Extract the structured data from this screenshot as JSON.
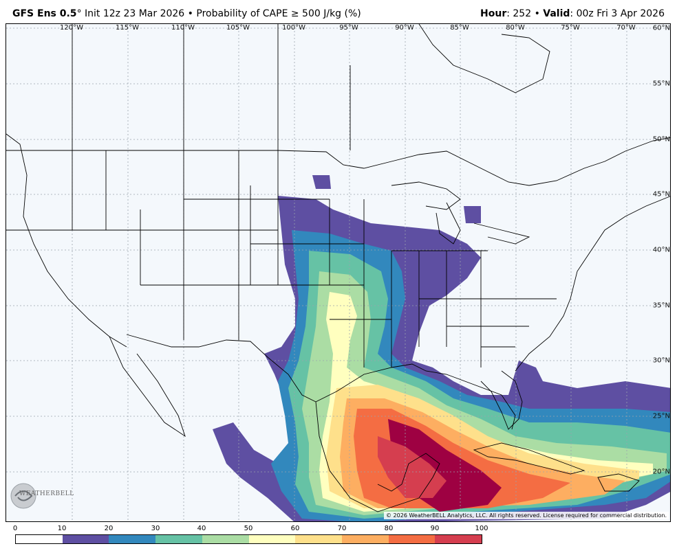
{
  "header": {
    "model": "GFS Ens 0.5",
    "degree": "°",
    "init": " Init 12z 23 Mar 2026 • Probability of CAPE ",
    "ge_symbol": "≥",
    "param_tail": " 500 J/kg (%)",
    "hour_key": "Hour",
    "hour_value": ": 252 • ",
    "valid_key": "Valid",
    "valid_value": ": 00z Fri 3 Apr 2026"
  },
  "map": {
    "longitude_labels": [
      "120°W",
      "115°W",
      "110°W",
      "105°W",
      "100°W",
      "95°W",
      "90°W",
      "85°W",
      "80°W",
      "75°W",
      "70°W"
    ],
    "latitude_labels": [
      "60°N",
      "55°N",
      "50°N",
      "45°N",
      "40°N",
      "35°N",
      "30°N",
      "25°N",
      "20°N"
    ],
    "copyright": "© 2026 WeatherBELL Analytics, LLC. All rights reserved. License required for commercial distribution.",
    "logo_text": "WEATHERBELL",
    "logo_icon": "swirl-logo-icon",
    "land_color": "#f4f8fc",
    "border_color": "#000000"
  },
  "colorbar": {
    "labels": [
      "0",
      "10",
      "20",
      "30",
      "40",
      "50",
      "60",
      "70",
      "80",
      "90",
      "100"
    ],
    "colors": [
      "#ffffff",
      "#5e4fa2",
      "#3288bd",
      "#66c2a5",
      "#abdda4",
      "#ffffbf",
      "#fee08b",
      "#fdae61",
      "#f46d43",
      "#d53e4f",
      "#9e0142"
    ]
  }
}
